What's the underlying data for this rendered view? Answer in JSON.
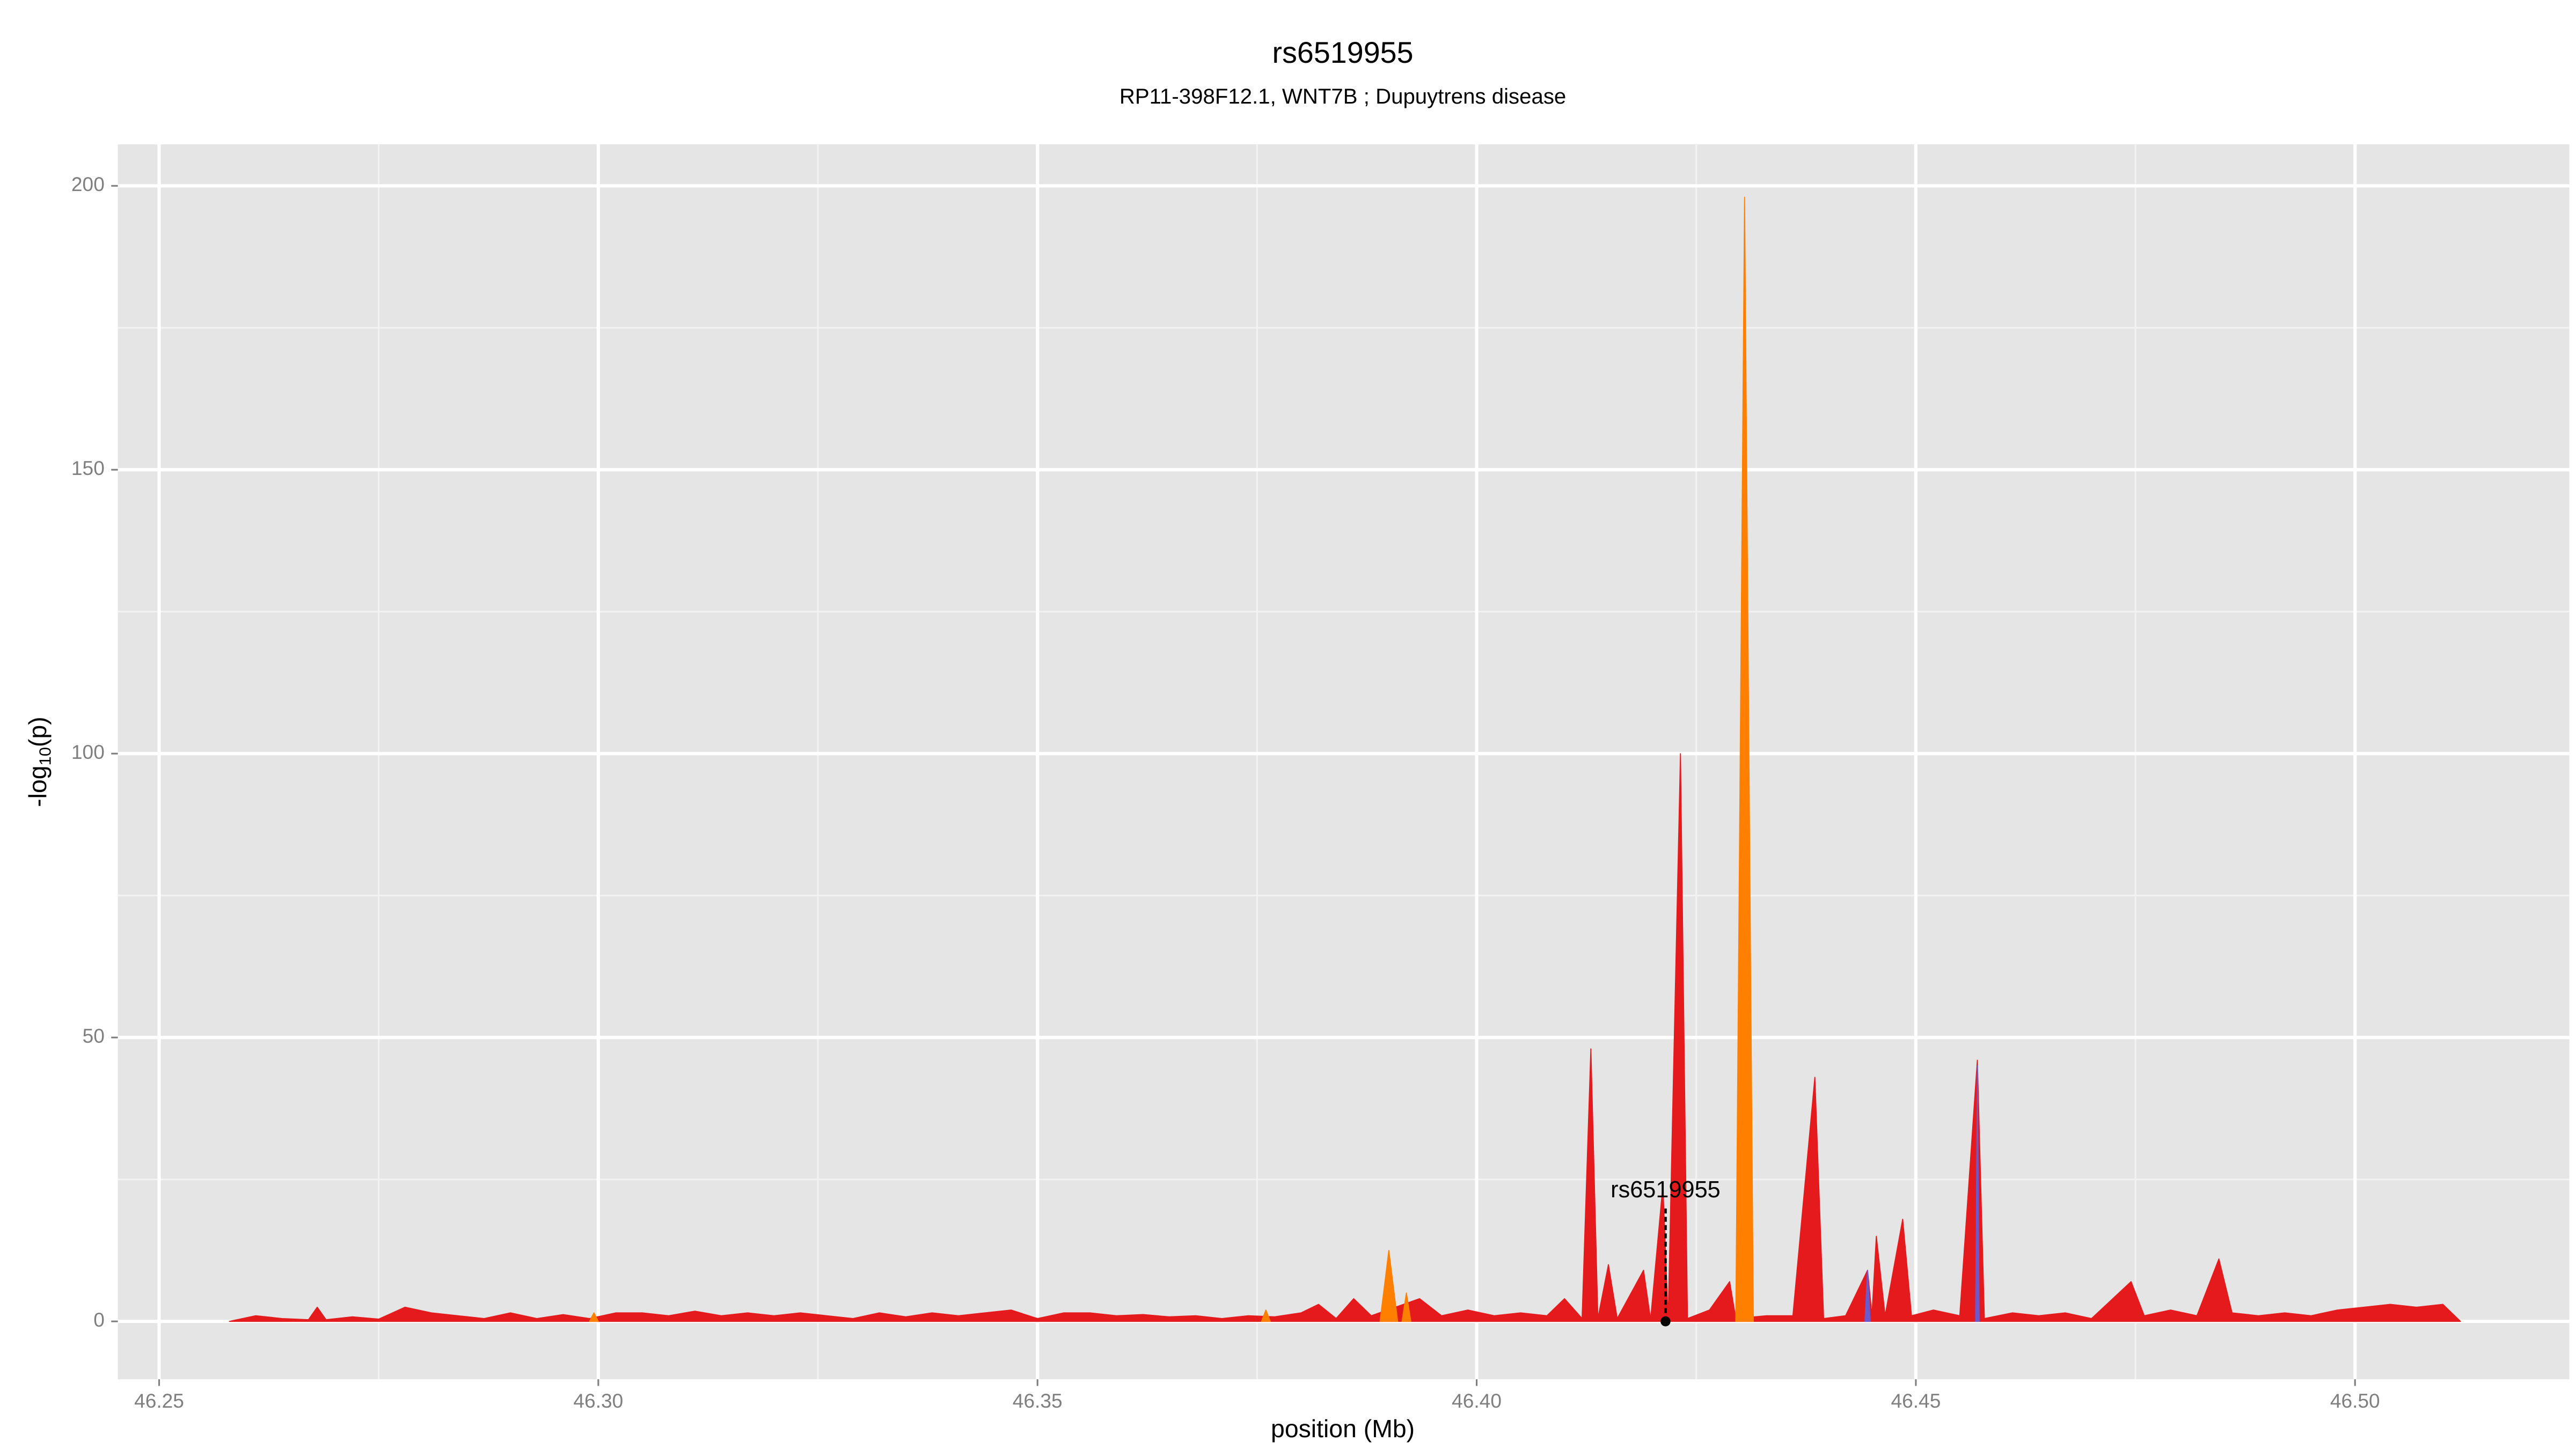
{
  "chart_data": {
    "type": "area",
    "title": "rs6519955",
    "subtitle": "RP11-398F12.1, WNT7B ; Dupuytrens disease",
    "xlabel": "position (Mb)",
    "ylabel_parts": [
      "-log",
      "10",
      "(p)"
    ],
    "xlim": [
      46.2453,
      46.5244
    ],
    "ylim": [
      -10.2,
      207.3
    ],
    "xticks": [
      46.25,
      {
        "value": 46.3,
        "label": "46.30"
      },
      46.35,
      {
        "value": 46.4,
        "label": "46.40"
      },
      46.45,
      {
        "value": 46.5,
        "label": "46.50"
      }
    ],
    "yticks": [
      0,
      50,
      100,
      150,
      200
    ],
    "x_minor_grid": [
      46.275,
      46.325,
      46.375,
      46.425,
      46.475
    ],
    "y_minor_grid": [
      25,
      75,
      125,
      175
    ],
    "grid": true,
    "series": [
      {
        "color": "#e41a1c",
        "x": [
          46.258,
          46.261,
          46.264,
          46.267,
          46.268,
          46.269,
          46.272,
          46.275,
          46.278,
          46.281,
          46.284,
          46.287,
          46.29,
          46.293,
          46.296,
          46.299,
          46.302,
          46.305,
          46.308,
          46.311,
          46.314,
          46.317,
          46.32,
          46.323,
          46.326,
          46.329,
          46.332,
          46.335,
          46.338,
          46.341,
          46.344,
          46.347,
          46.35,
          46.353,
          46.356,
          46.359,
          46.362,
          46.365,
          46.368,
          46.371,
          46.374,
          46.377,
          46.38,
          46.382,
          46.384,
          46.386,
          46.388,
          46.3935,
          46.396,
          46.399,
          46.402,
          46.405,
          46.408,
          46.41,
          46.412,
          46.413,
          46.4138,
          46.415,
          46.416,
          46.419,
          46.4198,
          46.4212,
          46.4218,
          46.4232,
          46.424,
          46.4265,
          46.4288,
          46.4295,
          46.433,
          46.436,
          46.4385,
          46.4395,
          46.442,
          46.4445,
          46.445,
          46.4455,
          46.4465,
          46.4485,
          46.4495,
          46.452,
          46.455,
          46.457,
          46.4578,
          46.461,
          46.464,
          46.467,
          46.47,
          46.4745,
          46.476,
          46.479,
          46.482,
          46.4845,
          46.486,
          46.489,
          46.492,
          46.495,
          46.498,
          46.501,
          46.504,
          46.507,
          46.51,
          46.512
        ],
        "values": [
          0,
          1,
          0.5,
          0.3,
          2.5,
          0.3,
          0.8,
          0.4,
          2.5,
          1.5,
          1,
          0.5,
          1.5,
          0.5,
          1.2,
          0.5,
          1.5,
          1.5,
          1,
          1.8,
          1,
          1.5,
          1,
          1.5,
          1,
          0.5,
          1.5,
          0.8,
          1.5,
          1,
          1.5,
          2,
          0.5,
          1.5,
          1.5,
          1,
          1.2,
          0.8,
          1,
          0.5,
          1,
          0.8,
          1.5,
          3,
          0.5,
          4,
          1,
          4,
          1,
          2,
          1,
          1.5,
          1,
          4,
          0.5,
          48,
          0.5,
          10,
          0.5,
          9,
          0.3,
          24,
          0.3,
          100,
          0.5,
          2,
          7,
          0.5,
          1,
          1,
          43,
          0.5,
          1,
          9,
          1,
          15,
          1,
          18,
          1,
          2,
          1,
          46,
          0.5,
          1.5,
          1,
          1.5,
          0.5,
          7,
          1,
          2,
          1,
          11,
          1.5,
          1,
          1.5,
          1,
          2,
          2.5,
          3,
          2.5,
          3,
          0
        ]
      },
      {
        "color": "#ff7f00",
        "x": [
          46.299,
          46.2995,
          46.3,
          null,
          46.3755,
          46.376,
          46.3765,
          null,
          46.389,
          46.39,
          46.391,
          null,
          46.3915,
          46.392,
          46.3925,
          null,
          46.4295,
          46.4305,
          46.4315
        ],
        "values": [
          0,
          1.5,
          0,
          null,
          0,
          2,
          0,
          null,
          0,
          12.5,
          0,
          null,
          0,
          5,
          0,
          null,
          0,
          198,
          0
        ]
      },
      {
        "color": "#6a5acd",
        "x": [
          46.4442,
          46.4445,
          46.4448,
          null,
          46.4568,
          46.457,
          46.4572
        ],
        "values": [
          0,
          9,
          0,
          null,
          0,
          45,
          0
        ]
      }
    ],
    "annotation": {
      "text": "rs6519955",
      "x": 46.4215,
      "y": 0,
      "line_top": 20
    }
  }
}
